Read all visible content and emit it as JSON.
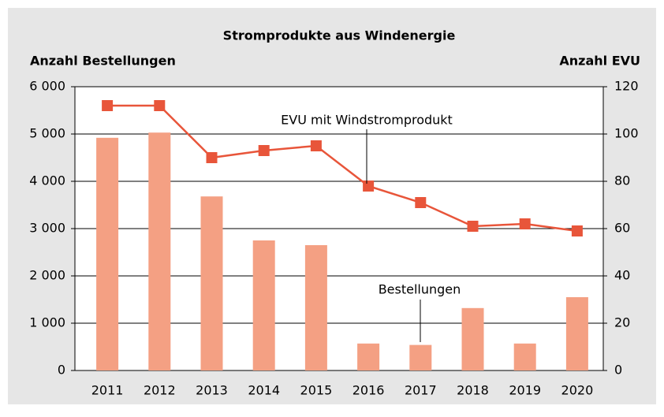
{
  "chart_data": {
    "type": "bar_line",
    "title": "Stromprodukte aus Windenergie",
    "y_label": "Anzahl Bestellungen",
    "y2_label": "Anzahl EVU",
    "categories": [
      "2011",
      "2012",
      "2013",
      "2014",
      "2015",
      "2016",
      "2017",
      "2018",
      "2019",
      "2020"
    ],
    "series": [
      {
        "name": "Bestellungen",
        "type": "bar",
        "color": "#f4a083",
        "values": [
          4920,
          5030,
          3680,
          2750,
          2650,
          570,
          540,
          1320,
          570,
          1550
        ]
      },
      {
        "name": "EVU mit Windstromprodukt",
        "type": "line",
        "axis": "y2",
        "color": "#e8553a",
        "values": [
          112,
          112,
          90,
          93,
          95,
          78,
          71,
          61,
          62,
          59
        ]
      }
    ],
    "ylim": [
      0,
      6000
    ],
    "yticks": [
      0,
      {
        "value": 1000,
        "label": "1 000"
      },
      {
        "value": 2000,
        "label": "2 000"
      },
      {
        "value": 3000,
        "label": "3 000"
      },
      {
        "value": 4000,
        "label": "4 000"
      },
      {
        "value": 5000,
        "label": "5 000"
      },
      {
        "value": 6000,
        "label": "6 000"
      }
    ],
    "y2lim": [
      0,
      120
    ],
    "y2ticks": [
      0,
      20,
      40,
      60,
      80,
      100,
      120
    ],
    "grid": true
  }
}
